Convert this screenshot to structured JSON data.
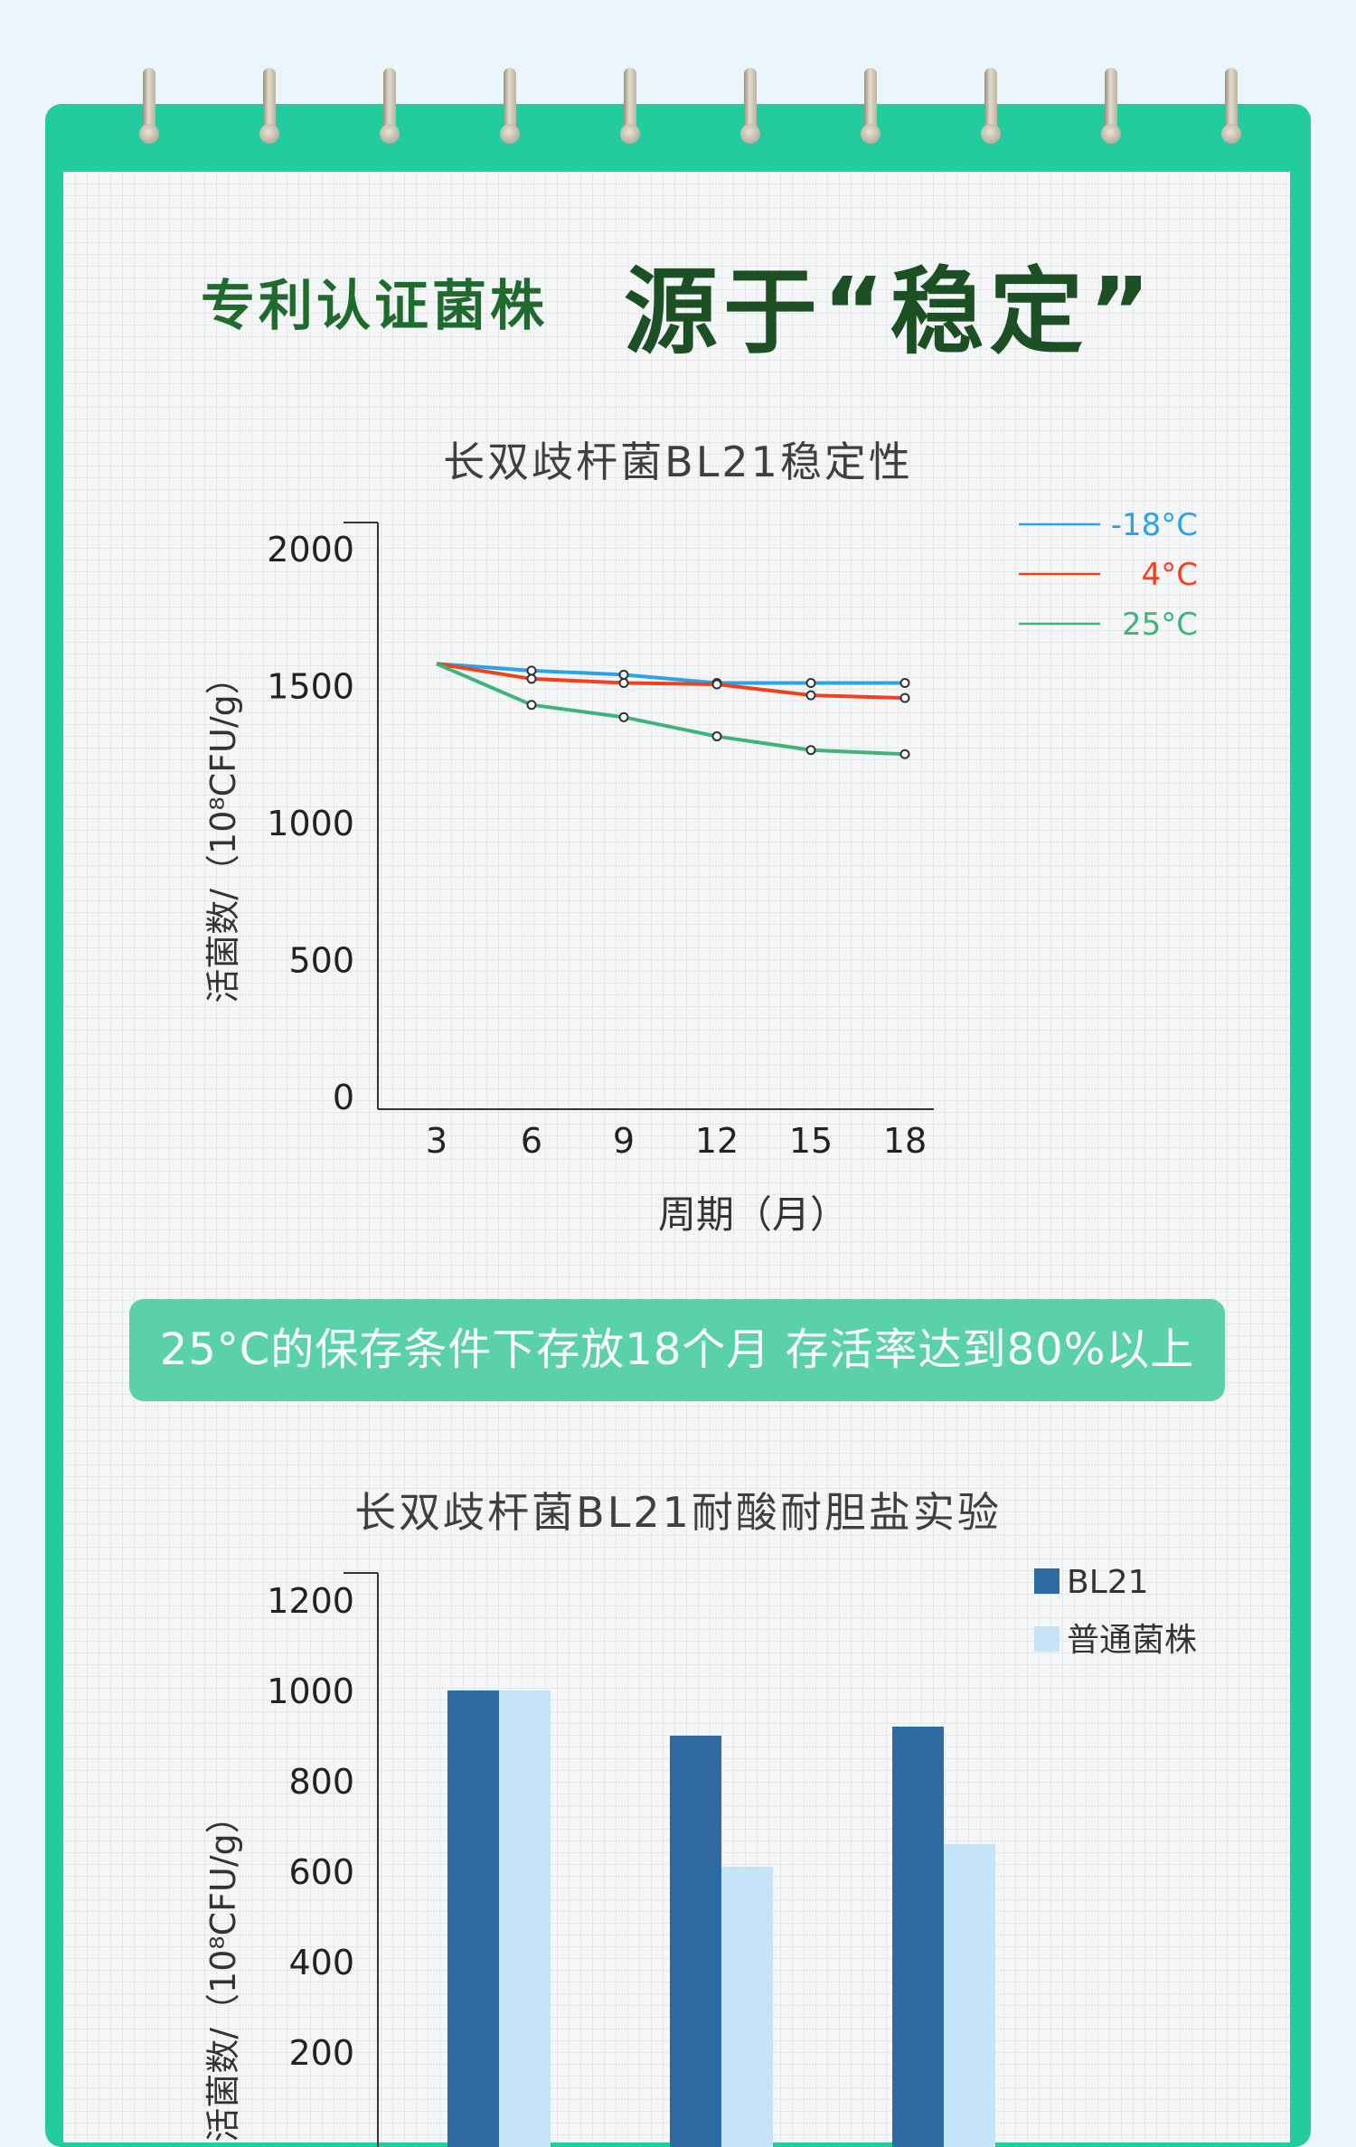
{
  "header": {
    "sub_title": "专利认证菌株",
    "main_title": "源于“稳定”"
  },
  "colors": {
    "notebook_frame": "#22cc9f",
    "title_green": "#1c4f24",
    "series_minus18": "#2aa3e8",
    "series_4": "#f2401d",
    "series_25": "#3eb47a",
    "bar_bl21": "#2e6ba3",
    "bar_normal": "#c6e4f7",
    "banner": "#5bd1a8"
  },
  "banner": {
    "text": "25°C的保存条件下存放18个月 存活率达到80%以上"
  },
  "chart_data": [
    {
      "type": "line",
      "title": "长双歧杆菌BL21稳定性",
      "xlabel": "周期（月）",
      "ylabel": "活菌数/（10⁸CFU/g）",
      "x": [
        3,
        6,
        9,
        12,
        15,
        18
      ],
      "ylim": [
        0,
        2000
      ],
      "yticks": [
        0,
        500,
        1000,
        1500,
        2000
      ],
      "legend_position": "top-right",
      "series": [
        {
          "name": "-18°C",
          "color": "#2aa3e8",
          "values": [
            1580,
            1555,
            1540,
            1510,
            1510,
            1510
          ]
        },
        {
          "name": "4°C",
          "color": "#f2401d",
          "values": [
            1580,
            1525,
            1510,
            1505,
            1465,
            1455
          ]
        },
        {
          "name": "25°C",
          "color": "#3eb47a",
          "values": [
            1580,
            1430,
            1385,
            1315,
            1265,
            1250
          ]
        }
      ]
    },
    {
      "type": "bar",
      "title": "长双歧杆菌BL21耐酸耐胆盐实验",
      "ylabel": "活菌数/（10⁸CFU/g）",
      "ylim": [
        0,
        1200
      ],
      "yticks": [
        200,
        400,
        600,
        800,
        1000,
        1200
      ],
      "legend_position": "top-right",
      "categories": [
        "",
        "",
        ""
      ],
      "series": [
        {
          "name": "BL21",
          "color": "#2e6ba3",
          "values": [
            1000,
            900,
            920
          ]
        },
        {
          "name": "普通菌株",
          "color": "#c6e4f7",
          "values": [
            1000,
            610,
            660
          ]
        }
      ]
    }
  ]
}
